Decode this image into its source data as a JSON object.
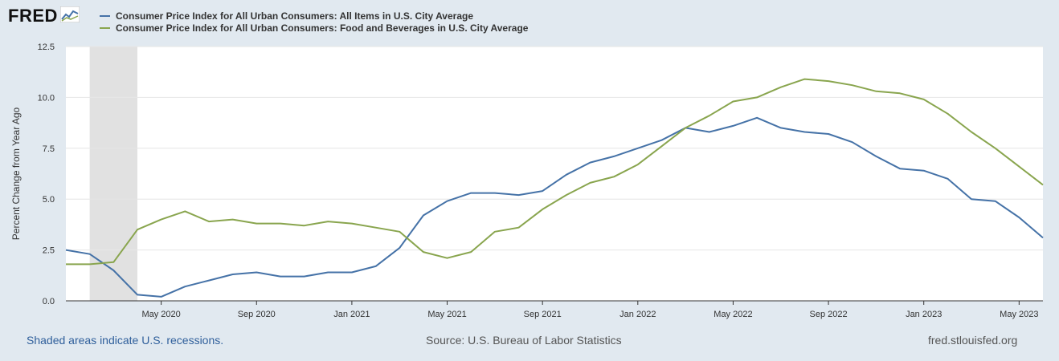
{
  "header": {
    "logo_text": "FRED",
    "logo_icon": "line-chart-icon"
  },
  "legend": [
    {
      "label": "Consumer Price Index for All Urban Consumers: All Items in U.S. City Average",
      "color": "#4572a7"
    },
    {
      "label": "Consumer Price Index for All Urban Consumers: Food and Beverages in U.S. City Average",
      "color": "#89a54e"
    }
  ],
  "footer": {
    "recession_note": "Shaded areas indicate U.S. recessions.",
    "source": "Source: U.S. Bureau of Labor Statistics",
    "site": "fred.stlouisfed.org"
  },
  "chart_data": {
    "type": "line",
    "ylabel": "Percent Change from Year Ago",
    "ylim": [
      0,
      12.5
    ],
    "yticks": [
      "0.0",
      "2.5",
      "5.0",
      "7.5",
      "10.0",
      "12.5"
    ],
    "xlim": [
      "2020-01",
      "2023-06"
    ],
    "xticks": [
      {
        "label": "May 2020",
        "date": "2020-05"
      },
      {
        "label": "Sep 2020",
        "date": "2020-09"
      },
      {
        "label": "Jan 2021",
        "date": "2021-01"
      },
      {
        "label": "May 2021",
        "date": "2021-05"
      },
      {
        "label": "Sep 2021",
        "date": "2021-09"
      },
      {
        "label": "Jan 2022",
        "date": "2022-01"
      },
      {
        "label": "May 2022",
        "date": "2022-05"
      },
      {
        "label": "Sep 2022",
        "date": "2022-09"
      },
      {
        "label": "Jan 2023",
        "date": "2023-01"
      },
      {
        "label": "May 2023",
        "date": "2023-05"
      }
    ],
    "recession": {
      "start": "2020-02",
      "end": "2020-04"
    },
    "grid": true,
    "x": [
      "2020-01",
      "2020-02",
      "2020-03",
      "2020-04",
      "2020-05",
      "2020-06",
      "2020-07",
      "2020-08",
      "2020-09",
      "2020-10",
      "2020-11",
      "2020-12",
      "2021-01",
      "2021-02",
      "2021-03",
      "2021-04",
      "2021-05",
      "2021-06",
      "2021-07",
      "2021-08",
      "2021-09",
      "2021-10",
      "2021-11",
      "2021-12",
      "2022-01",
      "2022-02",
      "2022-03",
      "2022-04",
      "2022-05",
      "2022-06",
      "2022-07",
      "2022-08",
      "2022-09",
      "2022-10",
      "2022-11",
      "2022-12",
      "2023-01",
      "2023-02",
      "2023-03",
      "2023-04",
      "2023-05",
      "2023-06"
    ],
    "series": [
      {
        "name": "Consumer Price Index for All Urban Consumers: All Items in U.S. City Average",
        "color": "#4572a7",
        "values": [
          2.5,
          2.3,
          1.5,
          0.3,
          0.2,
          0.7,
          1.0,
          1.3,
          1.4,
          1.2,
          1.2,
          1.4,
          1.4,
          1.7,
          2.6,
          4.2,
          4.9,
          5.3,
          5.3,
          5.2,
          5.4,
          6.2,
          6.8,
          7.1,
          7.5,
          7.9,
          8.5,
          8.3,
          8.6,
          9.0,
          8.5,
          8.3,
          8.2,
          7.8,
          7.1,
          6.5,
          6.4,
          6.0,
          5.0,
          4.9,
          4.1,
          3.1
        ]
      },
      {
        "name": "Consumer Price Index for All Urban Consumers: Food and Beverages in U.S. City Average",
        "color": "#89a54e",
        "values": [
          1.8,
          1.8,
          1.9,
          3.5,
          4.0,
          4.4,
          3.9,
          4.0,
          3.8,
          3.8,
          3.7,
          3.9,
          3.8,
          3.6,
          3.4,
          2.4,
          2.1,
          2.4,
          3.4,
          3.6,
          4.5,
          5.2,
          5.8,
          6.1,
          6.7,
          7.6,
          8.5,
          9.1,
          9.8,
          10.0,
          10.5,
          10.9,
          10.8,
          10.6,
          10.3,
          10.2,
          9.9,
          9.2,
          8.3,
          7.5,
          6.6,
          5.7
        ]
      }
    ]
  }
}
